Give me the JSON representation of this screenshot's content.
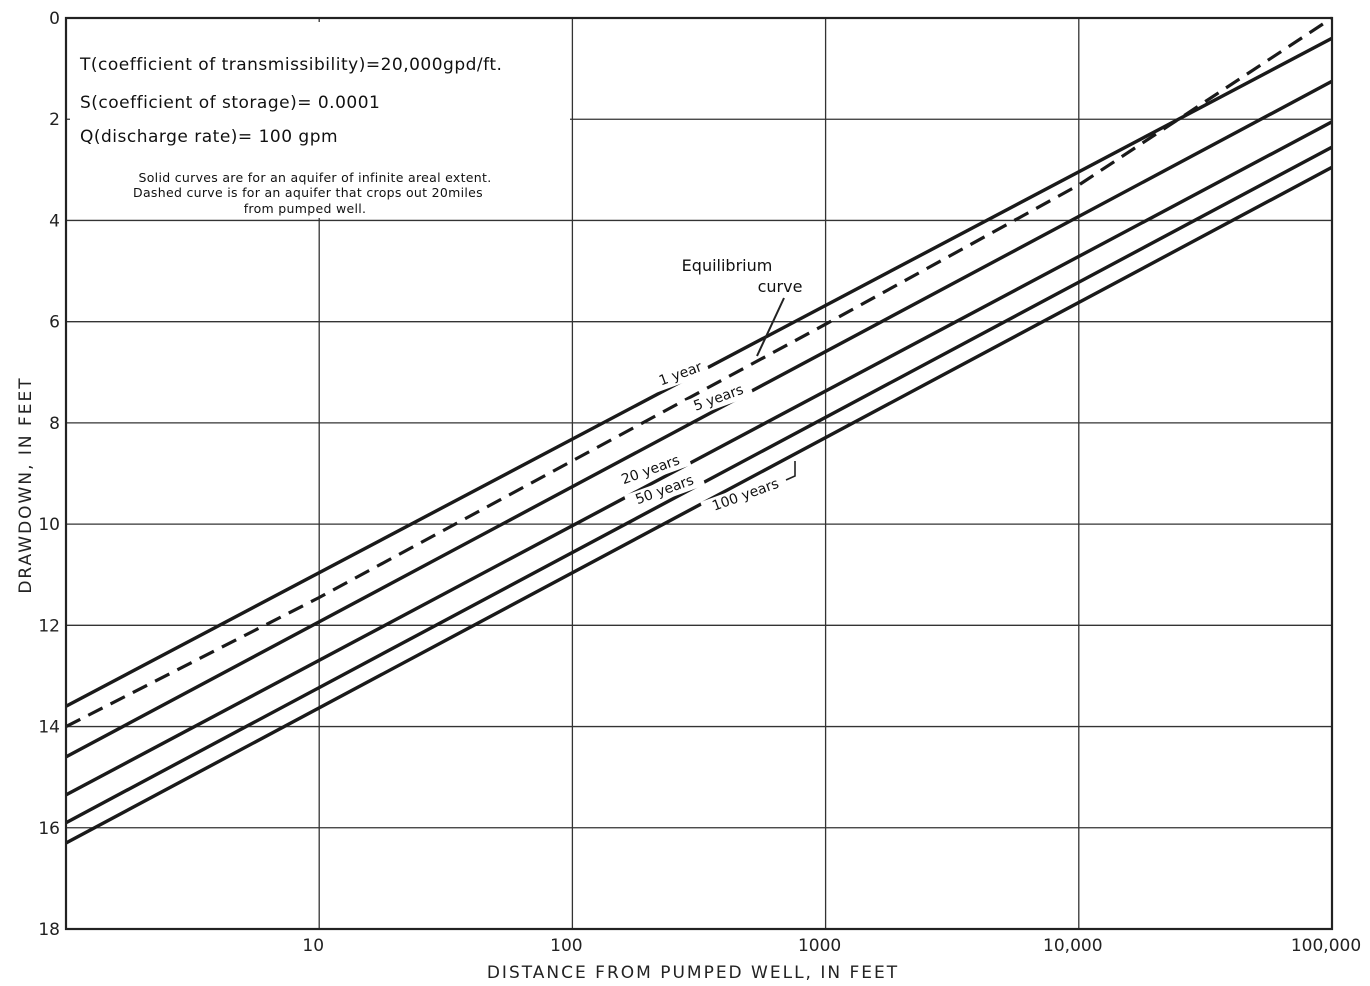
{
  "chart_data": {
    "type": "line",
    "x_scale": "log",
    "xlabel": "DISTANCE FROM PUMPED WELL, IN FEET",
    "ylabel": "DRAWDOWN, IN FEET",
    "xlim": [
      1,
      100000
    ],
    "ylim": [
      0,
      18
    ],
    "y_inverted": true,
    "grid": true,
    "x_ticks": [
      {
        "value": 10,
        "label": "10"
      },
      {
        "value": 100,
        "label": "100"
      },
      {
        "value": 1000,
        "label": "1000"
      },
      {
        "value": 10000,
        "label": "10,000"
      },
      {
        "value": 100000,
        "label": "100,000"
      }
    ],
    "y_ticks": [
      {
        "value": 0,
        "label": "0"
      },
      {
        "value": 2,
        "label": "2"
      },
      {
        "value": 4,
        "label": "4"
      },
      {
        "value": 6,
        "label": "6"
      },
      {
        "value": 8,
        "label": "8"
      },
      {
        "value": 10,
        "label": "10"
      },
      {
        "value": 12,
        "label": "12"
      },
      {
        "value": 14,
        "label": "14"
      },
      {
        "value": 16,
        "label": "16"
      },
      {
        "value": 18,
        "label": "18"
      }
    ],
    "notes": {
      "transmissibility": "T(coefficient of transmissibility)=20,000gpd/ft.",
      "storage": "S(coefficient of storage)= 0.0001",
      "discharge": "Q(discharge rate)= 100 gpm",
      "caption_line1": "Solid curves are for an aquifer of infinite areal extent.",
      "caption_line2": "Dashed curve is for an aquifer that crops out 20miles",
      "caption_line3": "from pumped well."
    },
    "series": [
      {
        "name": "1 year",
        "style": "solid",
        "x": [
          1,
          100000
        ],
        "y": [
          13.6,
          0.4
        ]
      },
      {
        "name": "5 years",
        "style": "solid",
        "x": [
          1,
          100000
        ],
        "y": [
          14.6,
          1.25
        ]
      },
      {
        "name": "20 years",
        "style": "solid",
        "x": [
          1,
          100000
        ],
        "y": [
          15.35,
          2.05
        ]
      },
      {
        "name": "50 years",
        "style": "solid",
        "x": [
          1,
          100000
        ],
        "y": [
          15.9,
          2.55
        ]
      },
      {
        "name": "100 years",
        "style": "solid",
        "x": [
          1,
          100000
        ],
        "y": [
          16.3,
          2.95
        ]
      },
      {
        "name": "Equilibrium curve",
        "style": "dashed",
        "x": [
          1,
          10,
          100,
          1000,
          10000,
          100000
        ],
        "y": [
          14.0,
          11.45,
          8.75,
          6.05,
          3.3,
          0.0
        ]
      }
    ],
    "labels": {
      "equilibrium_line1": "Equilibrium",
      "equilibrium_line2": "curve"
    }
  }
}
